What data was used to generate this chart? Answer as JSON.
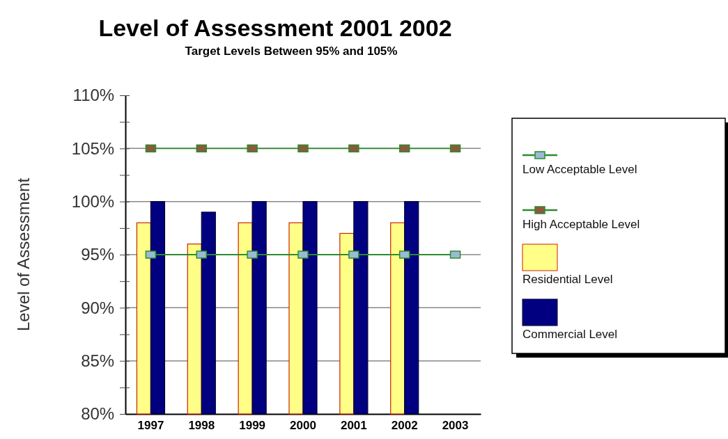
{
  "chart_data": {
    "type": "bar",
    "title": "Level of Assessment 2001 2002",
    "subtitle": "Target Levels Between 95% and 105%",
    "ylabel": "Level of Assessment",
    "categories": [
      "1997",
      "1998",
      "1999",
      "2000",
      "2001",
      "2002",
      "2003"
    ],
    "series": [
      {
        "name": "Low Acceptable Level",
        "type": "line",
        "color": "#2e8b2e",
        "colors": [
          "#99bbd6",
          "#99bbd6",
          "#99bbd6",
          "#99bbd6",
          "#99bbd6",
          "#99bbd6",
          "#99bbd6"
        ],
        "values": [
          95,
          95,
          95,
          95,
          95,
          95,
          95
        ]
      },
      {
        "name": "High Acceptable Level",
        "type": "line",
        "color": "#2e8b2e",
        "colors": [
          "#8b5a3c",
          "#8b5a3c",
          "#8b5a3c",
          "#8b5a3c",
          "#8b5a3c",
          "#8b5a3c",
          "#8b5a3c"
        ],
        "values": [
          105,
          105,
          105,
          105,
          105,
          105,
          105
        ]
      },
      {
        "name": "Residential Level",
        "color": "#ffff88",
        "values": [
          98,
          96,
          98,
          98,
          97,
          98,
          null
        ]
      },
      {
        "name": "Commercial Level",
        "color": "#000080",
        "values": [
          100,
          99,
          100,
          100,
          100,
          100,
          null
        ]
      }
    ],
    "ylim": [
      80,
      110
    ],
    "yticks": [
      {
        "value": 80,
        "label": "80%"
      },
      {
        "value": 82.5,
        "label": null
      },
      {
        "value": 85,
        "label": "85%"
      },
      {
        "value": 87.5,
        "label": null
      },
      {
        "value": 90,
        "label": "90%"
      },
      {
        "value": 92.5,
        "label": null
      },
      {
        "value": 95,
        "label": "95%"
      },
      {
        "value": 97.5,
        "label": null
      },
      {
        "value": 100,
        "label": "100%"
      },
      {
        "value": 102.5,
        "label": null
      },
      {
        "value": 105,
        "label": "105%"
      },
      {
        "value": 107.5,
        "label": null
      },
      {
        "value": 110,
        "label": "110%"
      }
    ],
    "grid": "y",
    "legend": "right",
    "marker": "square",
    "line_style": "solid"
  }
}
